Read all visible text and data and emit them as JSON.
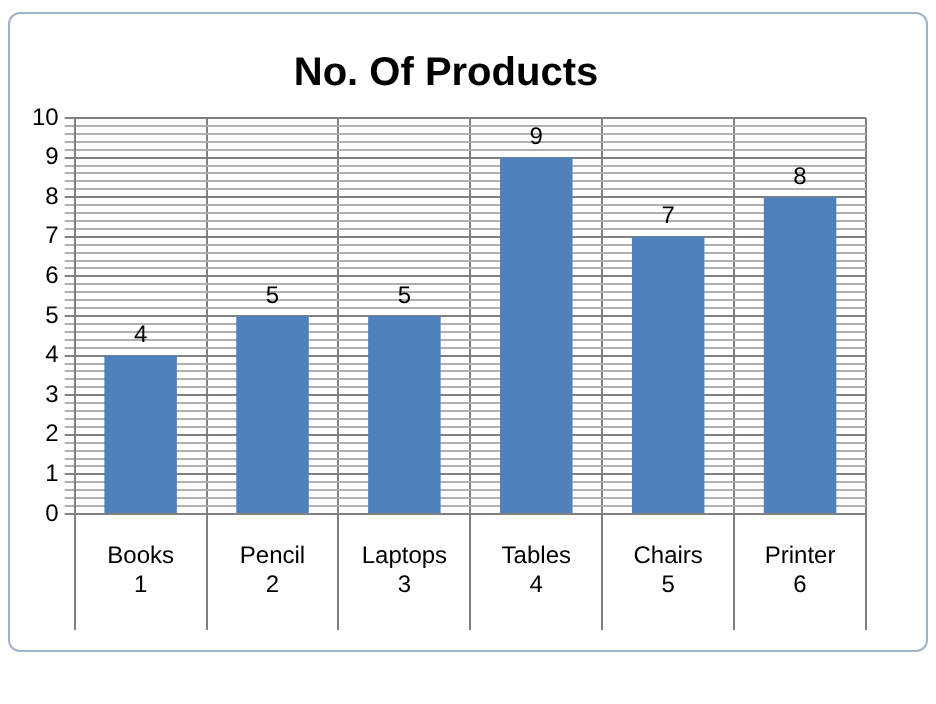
{
  "chart_data": {
    "type": "bar",
    "title": "No. Of Products",
    "categories": [
      "Books\n1",
      "Pencil\n2",
      "Laptops\n3",
      "Tables\n4",
      "Chairs\n5",
      "Printer\n6"
    ],
    "values": [
      4,
      5,
      5,
      9,
      7,
      8
    ],
    "color": "#4f81bd",
    "data_labels": true,
    "grid": true,
    "legend": false,
    "ylim": [
      0,
      10
    ],
    "yticks": [
      0,
      {
        "value": 0.2,
        "label": null
      },
      {
        "value": 0.4,
        "label": null
      },
      {
        "value": 0.6,
        "label": null
      },
      {
        "value": 0.8,
        "label": null
      },
      1,
      {
        "value": 1.2,
        "label": null
      },
      {
        "value": 1.4,
        "label": null
      },
      {
        "value": 1.6,
        "label": null
      },
      {
        "value": 1.8,
        "label": null
      },
      2,
      {
        "value": 2.2,
        "label": null
      },
      {
        "value": 2.4,
        "label": null
      },
      {
        "value": 2.6,
        "label": null
      },
      {
        "value": 2.8,
        "label": null
      },
      3,
      {
        "value": 3.2,
        "label": null
      },
      {
        "value": 3.4,
        "label": null
      },
      {
        "value": 3.6,
        "label": null
      },
      {
        "value": 3.8,
        "label": null
      },
      4,
      {
        "value": 4.2,
        "label": null
      },
      {
        "value": 4.4,
        "label": null
      },
      {
        "value": 4.6,
        "label": null
      },
      {
        "value": 4.8,
        "label": null
      },
      5,
      {
        "value": 5.2,
        "label": null
      },
      {
        "value": 5.4,
        "label": null
      },
      {
        "value": 5.6,
        "label": null
      },
      {
        "value": 5.8,
        "label": null
      },
      6,
      {
        "value": 6.2,
        "label": null
      },
      {
        "value": 6.4,
        "label": null
      },
      {
        "value": 6.6,
        "label": null
      },
      {
        "value": 6.8,
        "label": null
      },
      7,
      {
        "value": 7.2,
        "label": null
      },
      {
        "value": 7.4,
        "label": null
      },
      {
        "value": 7.6,
        "label": null
      },
      {
        "value": 7.8,
        "label": null
      },
      8,
      {
        "value": 8.2,
        "label": null
      },
      {
        "value": 8.4,
        "label": null
      },
      {
        "value": 8.6,
        "label": null
      },
      {
        "value": 8.8,
        "label": null
      },
      9,
      {
        "value": 9.2,
        "label": null
      },
      {
        "value": 9.4,
        "label": null
      },
      {
        "value": 9.6,
        "label": null
      },
      {
        "value": 9.8,
        "label": null
      },
      10
    ]
  }
}
